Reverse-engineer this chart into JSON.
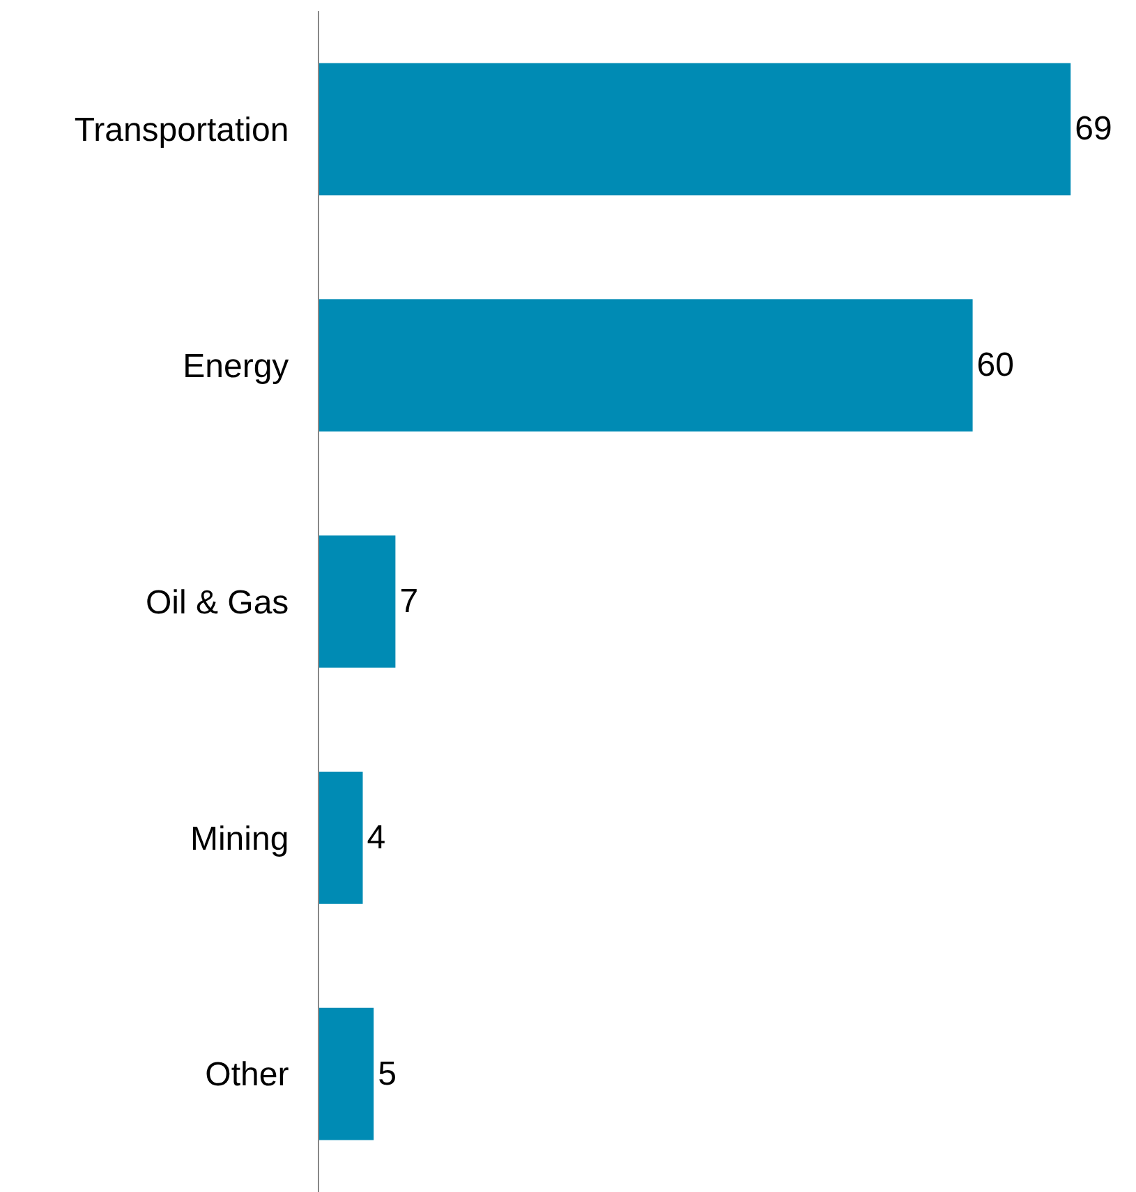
{
  "chart_data": {
    "type": "bar",
    "orientation": "horizontal",
    "categories": [
      "Transportation",
      "Energy",
      "Oil & Gas",
      "Mining",
      "Other"
    ],
    "values": [
      69,
      60,
      7,
      4,
      5
    ],
    "color": "#008bb4",
    "data_labels": true,
    "xlim": [
      0,
      75
    ],
    "tick_labels": "y",
    "grid": false,
    "legend": false
  }
}
